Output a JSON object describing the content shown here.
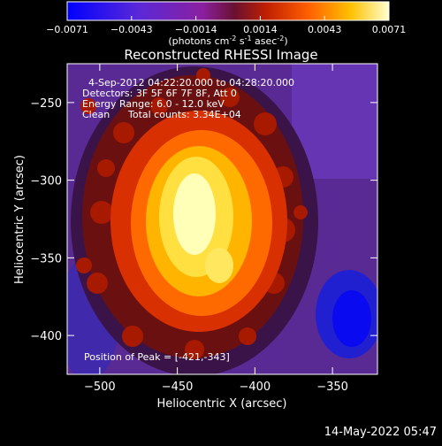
{
  "chart_data": {
    "type": "heatmap",
    "title": "Reconstructed RHESSI Image",
    "xlabel": "Heliocentric X (arcsec)",
    "ylabel": "Heliocentric Y (arcsec)",
    "xlim": [
      -521,
      -321
    ],
    "ylim": [
      -425,
      -225
    ],
    "xticks": [
      -500,
      -450,
      -400,
      -350
    ],
    "yticks": [
      -250,
      -300,
      -350,
      -400
    ],
    "colorbar": {
      "range": [
        -0.0071,
        0.0071
      ],
      "ticks": [
        "-0.0071",
        "-0.0043",
        "-0.0014",
        "0.0014",
        "0.0043",
        "0.0071"
      ],
      "units": "(photons cm",
      "units_sup1": "-2",
      "units_mid": " s",
      "units_sup2": "-1",
      "units_mid2": " asec",
      "units_sup3": "-2",
      "units_end": ")"
    },
    "peak": {
      "x": -421,
      "y": -343
    },
    "annotations": {
      "time": "4-Sep-2012 04:22:20.000 to 04:28:20.000",
      "detectors": "Detectors: 3F 5F 6F 7F 8F, Att 0",
      "energy": "Energy Range: 6.0 - 12.0 keV",
      "method": "Clean",
      "counts": "Total counts: 3.34E+04",
      "peak_label": "Position of Peak = [-421,-343]"
    }
  },
  "footer": {
    "timestamp": "14-May-2022 05:47"
  }
}
